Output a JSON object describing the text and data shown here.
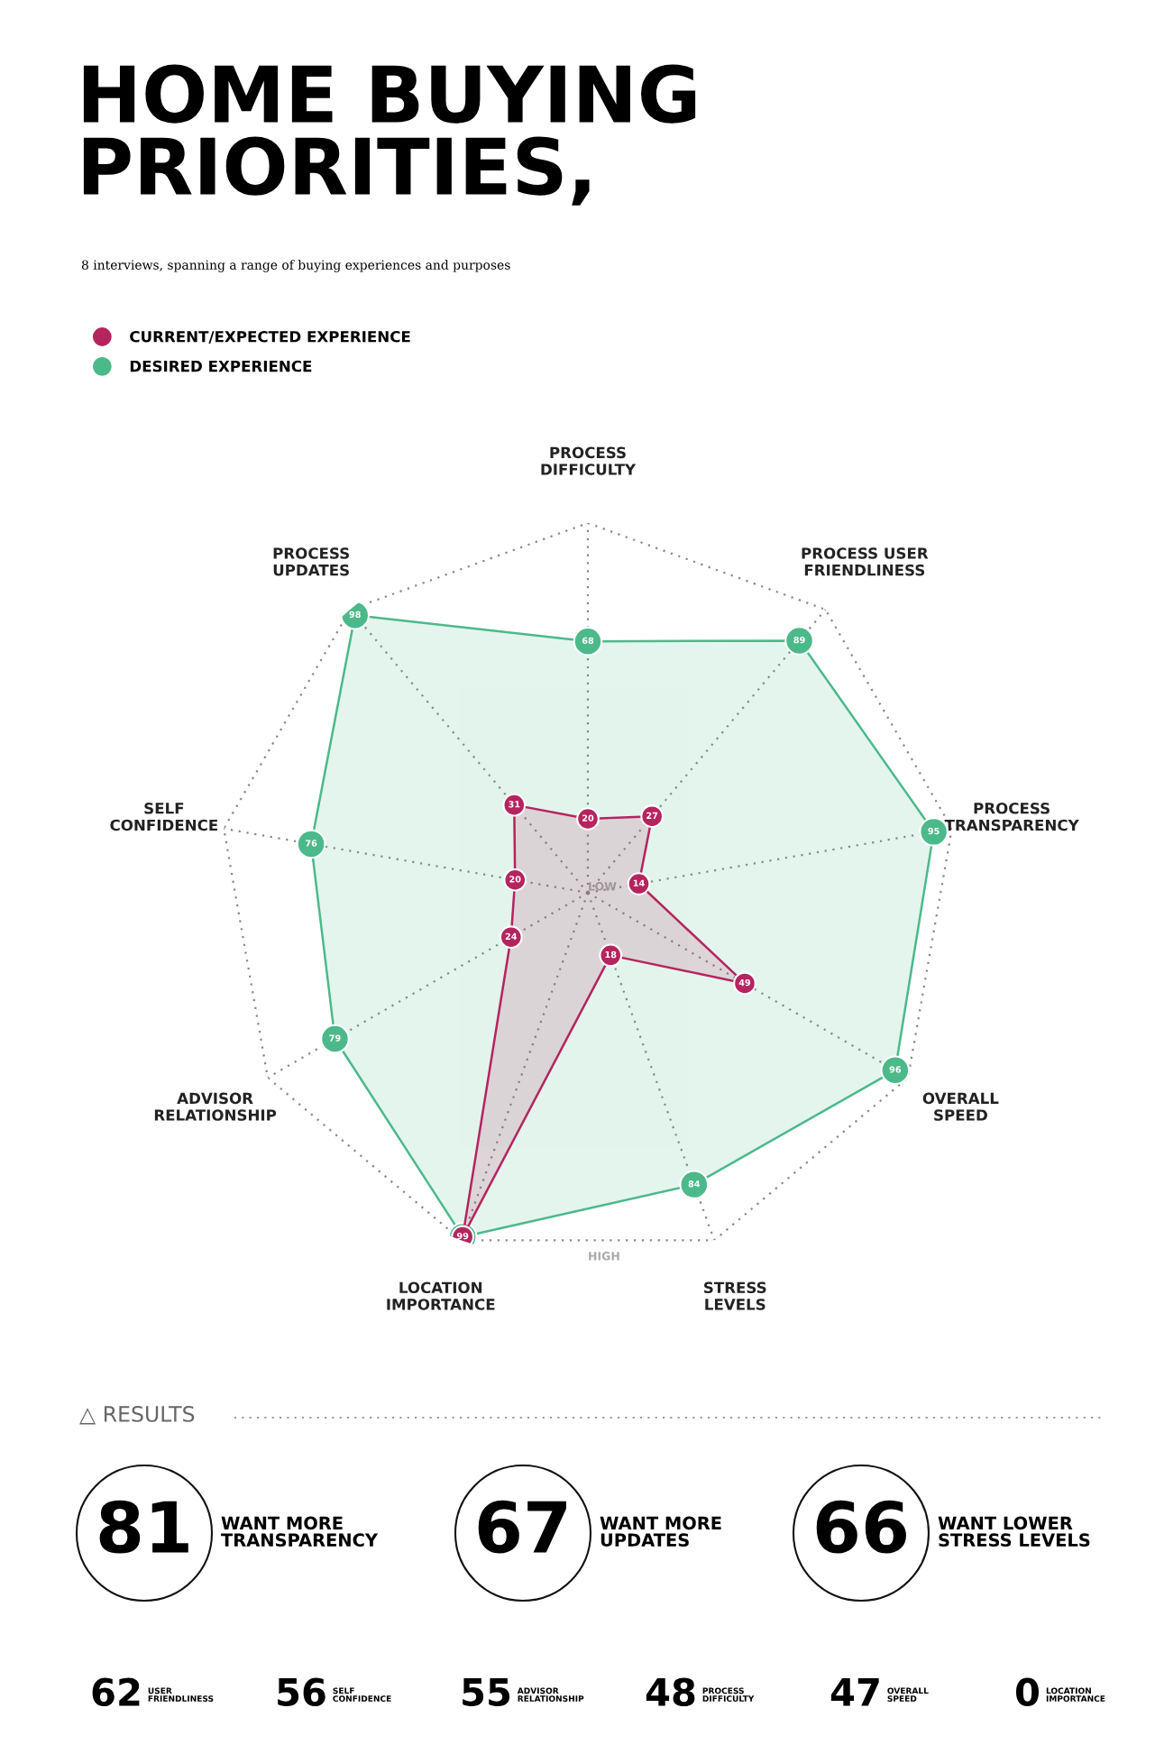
{
  "chart_data": {
    "type": "radar",
    "title": "HOME BUYING\nPRIORITIES,",
    "subtitle": "8 interviews, spanning a range of buying experiences and purposes",
    "categories": [
      "PROCESS\nDIFFICULTY",
      "PROCESS USER\nFRIENDLINESS",
      "PROCESS\nTRANSPARENCY",
      "OVERALL\nSPEED",
      "STRESS\nLEVELS",
      "LOCATION\nIMPORTANCE",
      "ADVISOR\nRELATIONSHIP",
      "SELF\nCONFIDENCE",
      "PROCESS\nUPDATES"
    ],
    "series": [
      {
        "name": "DESIRED EXPERIENCE",
        "color": "#4cb98a",
        "values": [
          68,
          89,
          95,
          96,
          84,
          99,
          79,
          76,
          98
        ],
        "value_labels": [
          "68",
          "89",
          "95",
          "96",
          "84",
          null,
          "79",
          "76",
          "98"
        ]
      },
      {
        "name": "CURRENT/EXPECTED EXPERIENCE",
        "color": "#b5245f",
        "values": [
          20,
          27,
          14,
          49,
          18,
          99,
          24,
          20,
          31
        ],
        "value_labels": [
          "20",
          "27",
          "14",
          "49",
          "18",
          "99",
          "24",
          "20",
          "31"
        ]
      }
    ],
    "ylim": [
      0,
      100
    ],
    "yticks": [
      {
        "value": 0,
        "label": "LOW"
      },
      {
        "value": 100,
        "label": "HIGH"
      }
    ],
    "grid": true,
    "line_style": "solid",
    "marker": "circle",
    "legend": "top left",
    "annotations": [
      "△ RESULTS",
      "81",
      "WANT MORE\nTRANSPARENCY",
      "67",
      "WANT MORE\nUPDATES",
      "66",
      "WANT LOWER\nSTRESS LEVELS",
      "62",
      "USER\nFRIENDLINESS",
      "56",
      "SELF\nCONFIDENCE",
      "55",
      "ADVISOR\nRELATIONSHIP",
      "48",
      "PROCESS\nDIFFICULTY",
      "47",
      "OVERALL\nSPEED",
      "0",
      "LOCATION\nIMPORTANCE"
    ]
  }
}
